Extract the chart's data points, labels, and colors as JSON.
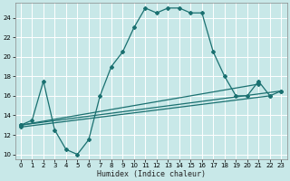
{
  "xlabel": "Humidex (Indice chaleur)",
  "bg_color": "#c8e8e8",
  "grid_color": "#aed4d4",
  "line_color": "#1a7070",
  "xlim": [
    -0.5,
    23.5
  ],
  "ylim": [
    9.5,
    25.5
  ],
  "xticks": [
    0,
    1,
    2,
    3,
    4,
    5,
    6,
    7,
    8,
    9,
    10,
    11,
    12,
    13,
    14,
    15,
    16,
    17,
    18,
    19,
    20,
    21,
    22,
    23
  ],
  "yticks": [
    10,
    12,
    14,
    16,
    18,
    20,
    22,
    24
  ],
  "curve_x": [
    0,
    1,
    2,
    3,
    4,
    5,
    6,
    7,
    8,
    9,
    10,
    11,
    12,
    13,
    14,
    15,
    16,
    17,
    18,
    19,
    20,
    21,
    22,
    23
  ],
  "curve_y": [
    13.0,
    13.5,
    17.5,
    12.5,
    10.5,
    10.0,
    11.5,
    16.0,
    19.0,
    20.5,
    23.0,
    25.0,
    24.5,
    25.0,
    25.0,
    24.5,
    24.5,
    20.5,
    18.0,
    16.0,
    16.0,
    17.5,
    16.0,
    16.5
  ],
  "line1_x": [
    0,
    21
  ],
  "line1_y": [
    13.0,
    17.2
  ],
  "line2_x": [
    0,
    22
  ],
  "line2_y": [
    12.8,
    16.0
  ],
  "line3_x": [
    0,
    23
  ],
  "line3_y": [
    13.0,
    16.5
  ]
}
